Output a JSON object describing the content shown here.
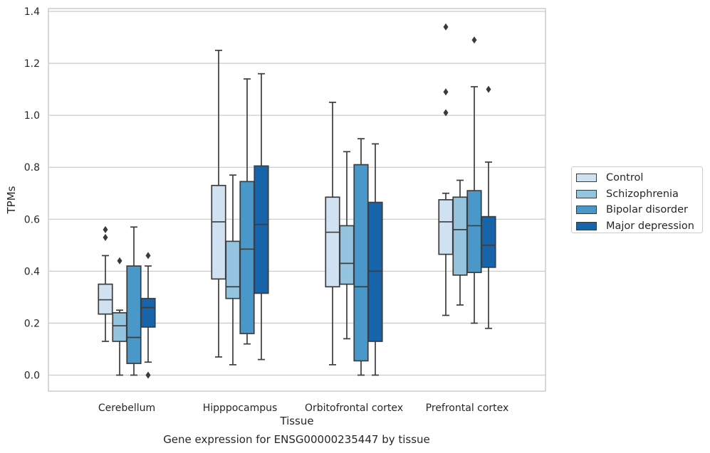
{
  "chart_data": {
    "type": "box",
    "xlabel": "Tissue",
    "ylabel": "TPMs",
    "caption": "Gene expression for ENSG00000235447 by tissue",
    "ylim": [
      -0.06,
      1.41
    ],
    "yticks": [
      "0.0",
      "0.2",
      "0.4",
      "0.6",
      "0.8",
      "1.0",
      "1.2",
      "1.4"
    ],
    "grid": "horizontal",
    "legend_position": "right",
    "categories": [
      "Cerebellum",
      "Hipppocampus",
      "Orbitofrontal cortex",
      "Prefrontal cortex"
    ],
    "series": [
      {
        "name": "Control",
        "color": "#d0e1f2",
        "boxes": [
          {
            "whislo": 0.13,
            "q1": 0.235,
            "med": 0.29,
            "q3": 0.35,
            "whishi": 0.46,
            "fliers": [
              0.53,
              0.56
            ]
          },
          {
            "whislo": 0.07,
            "q1": 0.37,
            "med": 0.59,
            "q3": 0.73,
            "whishi": 1.25,
            "fliers": []
          },
          {
            "whislo": 0.04,
            "q1": 0.34,
            "med": 0.55,
            "q3": 0.685,
            "whishi": 1.05,
            "fliers": []
          },
          {
            "whislo": 0.23,
            "q1": 0.465,
            "med": 0.59,
            "q3": 0.675,
            "whishi": 0.7,
            "fliers": [
              1.01,
              1.09,
              1.34
            ]
          }
        ]
      },
      {
        "name": "Schizophrenia",
        "color": "#94c4df",
        "boxes": [
          {
            "whislo": 0.0,
            "q1": 0.13,
            "med": 0.19,
            "q3": 0.24,
            "whishi": 0.25,
            "fliers": [
              0.44
            ]
          },
          {
            "whislo": 0.04,
            "q1": 0.295,
            "med": 0.34,
            "q3": 0.515,
            "whishi": 0.77,
            "fliers": []
          },
          {
            "whislo": 0.14,
            "q1": 0.35,
            "med": 0.43,
            "q3": 0.575,
            "whishi": 0.86,
            "fliers": []
          },
          {
            "whislo": 0.27,
            "q1": 0.385,
            "med": 0.56,
            "q3": 0.685,
            "whishi": 0.75,
            "fliers": []
          }
        ]
      },
      {
        "name": "Bipolar disorder",
        "color": "#4a98c9",
        "boxes": [
          {
            "whislo": 0.0,
            "q1": 0.045,
            "med": 0.145,
            "q3": 0.42,
            "whishi": 0.57,
            "fliers": []
          },
          {
            "whislo": 0.12,
            "q1": 0.16,
            "med": 0.485,
            "q3": 0.745,
            "whishi": 1.14,
            "fliers": []
          },
          {
            "whislo": 0.0,
            "q1": 0.055,
            "med": 0.34,
            "q3": 0.81,
            "whishi": 0.91,
            "fliers": []
          },
          {
            "whislo": 0.2,
            "q1": 0.395,
            "med": 0.575,
            "q3": 0.71,
            "whishi": 1.11,
            "fliers": [
              1.29
            ]
          }
        ]
      },
      {
        "name": "Major depression",
        "color": "#1764ab",
        "boxes": [
          {
            "whislo": 0.05,
            "q1": 0.185,
            "med": 0.26,
            "q3": 0.295,
            "whishi": 0.42,
            "fliers": [
              0.0,
              0.46
            ]
          },
          {
            "whislo": 0.06,
            "q1": 0.315,
            "med": 0.58,
            "q3": 0.805,
            "whishi": 1.16,
            "fliers": []
          },
          {
            "whislo": 0.0,
            "q1": 0.13,
            "med": 0.4,
            "q3": 0.665,
            "whishi": 0.89,
            "fliers": []
          },
          {
            "whislo": 0.18,
            "q1": 0.415,
            "med": 0.5,
            "q3": 0.61,
            "whishi": 0.82,
            "fliers": [
              1.1
            ]
          }
        ]
      }
    ]
  }
}
